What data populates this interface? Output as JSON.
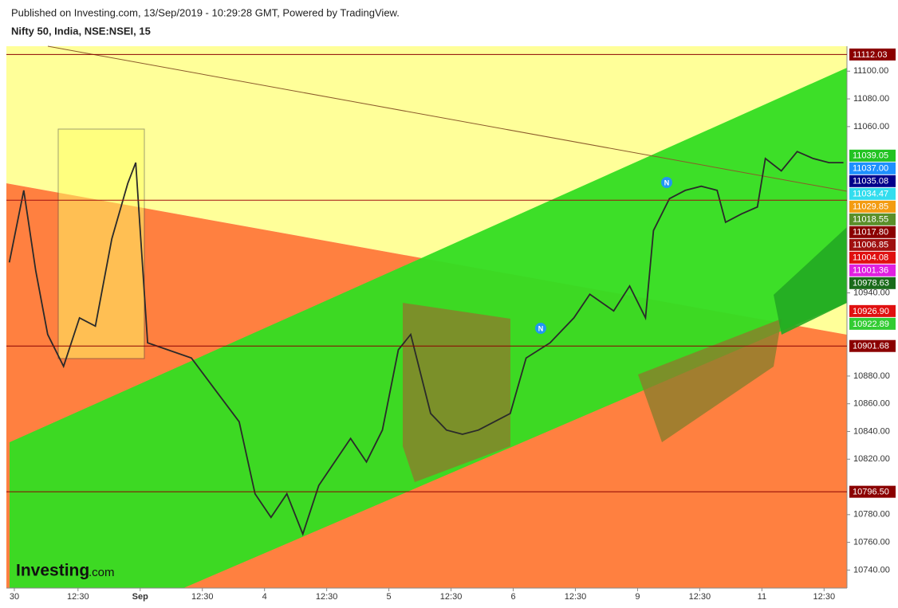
{
  "chart_data": {
    "type": "line",
    "published": "Published on Investing.com, 13/Sep/2019 - 10:29:28 GMT, Powered by TradingView.",
    "title": "Nifty 50, India, NSE:NSEI, 15",
    "logo": "Investing",
    "logo_suffix": ".com",
    "markers": [
      "N",
      "N"
    ],
    "xlim": [
      0,
      169
    ],
    "xticks": [
      {
        "value": 1.6,
        "label": "30"
      },
      {
        "value": 14.4,
        "label": "12:30"
      },
      {
        "value": 26.9,
        "label": "Sep"
      },
      {
        "value": 39.4,
        "label": "12:30"
      },
      {
        "value": 51.9,
        "label": "4"
      },
      {
        "value": 64.4,
        "label": "12:30"
      },
      {
        "value": 76.9,
        "label": "5"
      },
      {
        "value": 89.4,
        "label": "12:30"
      },
      {
        "value": 101.9,
        "label": "6"
      },
      {
        "value": 114.4,
        "label": "12:30"
      },
      {
        "value": 126.9,
        "label": "9"
      },
      {
        "value": 139.4,
        "label": "12:30"
      },
      {
        "value": 151.9,
        "label": "11"
      },
      {
        "value": 164.4,
        "label": "12:30"
      }
    ],
    "ylim": [
      10727,
      11118
    ],
    "yticks": [
      {
        "value": 10740,
        "label": "10740.00"
      },
      {
        "value": 10760,
        "label": "10760.00"
      },
      {
        "value": 10780,
        "label": "10780.00"
      },
      {
        "value": 10820,
        "label": "10820.00"
      },
      {
        "value": 10840,
        "label": "10840.00"
      },
      {
        "value": 10860,
        "label": "10860.00"
      },
      {
        "value": 10880,
        "label": "10880.00"
      },
      {
        "value": 10940,
        "label": "10940.00"
      },
      {
        "value": 11060,
        "label": "11060.00"
      },
      {
        "value": 11080,
        "label": "11080.00"
      },
      {
        "value": 11100,
        "label": "11100.00"
      }
    ],
    "series": [
      {
        "name": "Nifty 50",
        "color": "#2a2a2a",
        "x": [
          0.6,
          3.5,
          5.9,
          8.3,
          11.5,
          14.7,
          17.9,
          21.2,
          24.4,
          26,
          28.4,
          32.4,
          37.2,
          42,
          46.8,
          50,
          53.2,
          56.4,
          59.6,
          62.8,
          66,
          69.2,
          72.4,
          75.6,
          78.8,
          81.3,
          85.3,
          88.5,
          91.7,
          94.9,
          98.1,
          101.3,
          104.5,
          109.3,
          114.1,
          117.3,
          122.1,
          125.3,
          128.5,
          130.1,
          133.3,
          136.5,
          139.7,
          142.9,
          144.6,
          147.8,
          151,
          152.6,
          155.8,
          159,
          162.2,
          165.4,
          168.3
        ],
        "values": [
          10962,
          11014,
          10956,
          10910,
          10887,
          10922,
          10916,
          10979,
          11019,
          11034,
          10904,
          10899,
          10893,
          10870,
          10847,
          10795,
          10778,
          10795,
          10766,
          10801,
          10818,
          10835,
          10818,
          10841,
          10899,
          10910,
          10853,
          10841,
          10838,
          10841,
          10847,
          10853,
          10893,
          10904,
          10922,
          10939,
          10927,
          10945,
          10922,
          10985,
          11008,
          11014,
          11017,
          11014,
          10991,
          10997,
          11002,
          11037,
          11028,
          11042,
          11037,
          11034,
          11034
        ]
      }
    ],
    "levels": [
      {
        "value": 11112.03,
        "label": "11112.03",
        "color": "#8b0000",
        "line": true
      },
      {
        "value": 11039.05,
        "label": "11039.05",
        "color": "#22c322",
        "line": false
      },
      {
        "value": 11037.0,
        "label": "11037.00",
        "color": "#1e90ff",
        "line": false
      },
      {
        "value": 11035.08,
        "label": "11035.08",
        "color": "#00008b",
        "line": false
      },
      {
        "value": 11034.47,
        "label": "11034.47",
        "color": "#33ddee",
        "line": false
      },
      {
        "value": 11029.85,
        "label": "11029.85",
        "color": "#f39c12",
        "line": false
      },
      {
        "value": 11018.55,
        "label": "11018.55",
        "color": "#5a8f29",
        "line": false
      },
      {
        "value": 11017.8,
        "label": "11017.80",
        "color": "#8b0000",
        "line": false
      },
      {
        "value": 11006.85,
        "label": "11006.85",
        "color": "#a01010",
        "line": true
      },
      {
        "value": 11004.08,
        "label": "11004.08",
        "color": "#e01010",
        "line": false
      },
      {
        "value": 11001.36,
        "label": "11001.36",
        "color": "#e020e0",
        "line": false
      },
      {
        "value": 10978.63,
        "label": "10978.63",
        "color": "#1a6b1a",
        "line": false
      },
      {
        "value": 10926.9,
        "label": "10926.90",
        "color": "#e01010",
        "line": false
      },
      {
        "value": 10922.89,
        "label": "10922.89",
        "color": "#33cc33",
        "line": false
      },
      {
        "value": 10901.68,
        "label": "10901.68",
        "color": "#8b0000",
        "line": true
      },
      {
        "value": 10796.5,
        "label": "10796.50",
        "color": "#8b0000",
        "line": true
      }
    ]
  }
}
